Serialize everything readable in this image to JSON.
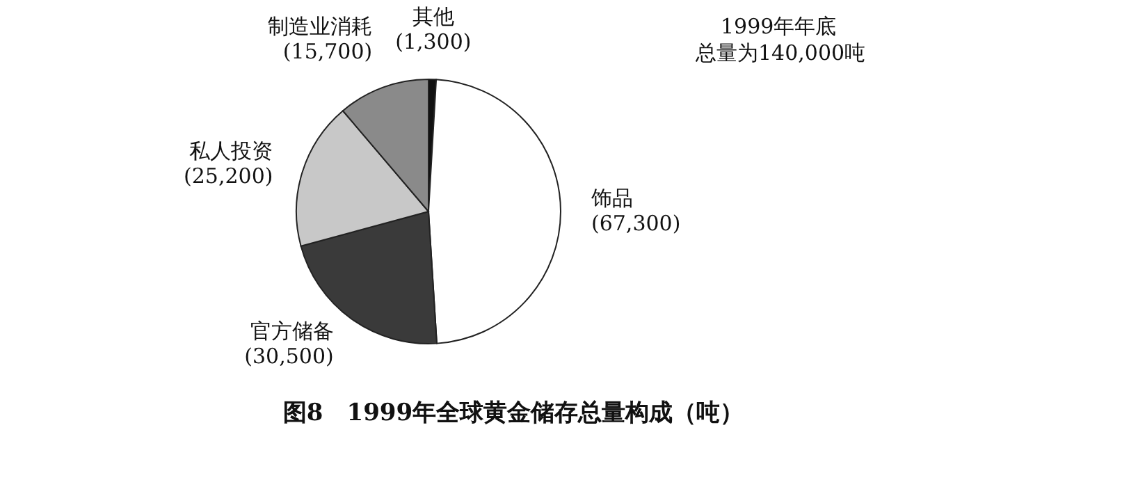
{
  "chart_data": {
    "type": "pie",
    "title": "图8　1999年全球黄金储存总量构成（吨）",
    "annotations": [
      "1999年年底",
      "总量为140,000吨"
    ],
    "categories": [
      "其他",
      "饰品",
      "官方储备",
      "私人投资",
      "制造业消耗"
    ],
    "values": [
      1300,
      67300,
      30500,
      25200,
      15700
    ],
    "colors": [
      "#111111",
      "#ffffff",
      "#3a3a3a",
      "#c8c8c8",
      "#8a8a8a"
    ],
    "value_labels": [
      "(1,300)",
      "(67,300)",
      "(30,500)",
      "(25,200)",
      "(15,700)"
    ]
  }
}
